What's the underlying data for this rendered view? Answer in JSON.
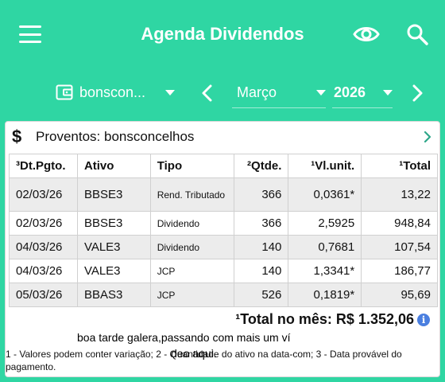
{
  "app": {
    "title": "Agenda Dividendos"
  },
  "filters": {
    "wallet": "bonscon...",
    "month": "Março",
    "year": "2026"
  },
  "card": {
    "title": "Proventos: bonsconcelhos",
    "columns": [
      "³Dt.Pgto.",
      "Ativo",
      "Tipo",
      "²Qtde.",
      "¹Vl.unit.",
      "¹Total"
    ],
    "rows": [
      {
        "date": "02/03/26",
        "ativo": "BBSE3",
        "tipo": "Rend. Tributado",
        "qtde": "366",
        "vlunit": "0,0361*",
        "total": "13,22"
      },
      {
        "date": "02/03/26",
        "ativo": "BBSE3",
        "tipo": "Dividendo",
        "qtde": "366",
        "vlunit": "2,5925",
        "total": "948,84"
      },
      {
        "date": "04/03/26",
        "ativo": "VALE3",
        "tipo": "Dividendo",
        "qtde": "140",
        "vlunit": "0,7681",
        "total": "107,54"
      },
      {
        "date": "04/03/26",
        "ativo": "VALE3",
        "tipo": "JCP",
        "qtde": "140",
        "vlunit": "1,3341*",
        "total": "186,77"
      },
      {
        "date": "05/03/26",
        "ativo": "BBAS3",
        "tipo": "JCP",
        "qtde": "526",
        "vlunit": "0,1819*",
        "total": "95,69"
      }
    ],
    "total_label": "¹Total no mês: R$ 1.352,06",
    "footnote": "1 - Valores podem conter variação; 2 - Quantidade do ativo na data-com; 3 - Data provável do pagamento."
  },
  "caption": {
    "line1": "boa tarde galera,passando com mais um ví",
    "line2": "deo aqui."
  },
  "colors": {
    "accent": "#2fd6a3",
    "shaded_row": "#ececec",
    "info": "#4a7fe0"
  }
}
